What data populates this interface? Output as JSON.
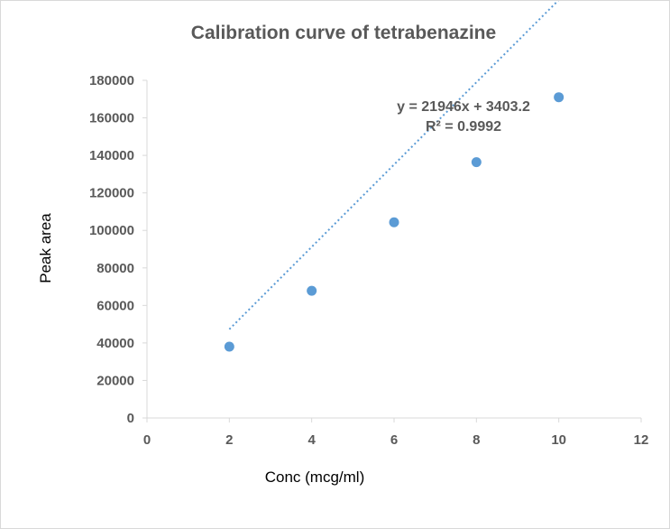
{
  "chart_data": {
    "type": "scatter",
    "title": "Calibration curve of tetrabenazine",
    "xlabel": "Conc (mcg/ml)",
    "ylabel": "Peak area",
    "xlim": [
      0,
      12
    ],
    "ylim": [
      0,
      180000
    ],
    "x_ticks": [
      "0",
      "2",
      "4",
      "6",
      "8",
      "10",
      "12"
    ],
    "y_ticks": [
      "0",
      "20000",
      "40000",
      "60000",
      "80000",
      "100000",
      "120000",
      "140000",
      "160000",
      "180000"
    ],
    "grid": false,
    "legend": "none",
    "series": [
      {
        "x": [
          2,
          4,
          6,
          8,
          10
        ],
        "y": [
          38000,
          67800,
          104300,
          136400,
          171000
        ]
      }
    ],
    "trendline": {
      "type": "linear",
      "slope": 21946,
      "intercept": 3403.2,
      "x_range": [
        2,
        10
      ],
      "style": "dotted"
    },
    "annotations": {
      "equation": "y = 21946x + 3403.2",
      "r_squared": "R² = 0.9992"
    },
    "colors": {
      "marker": "#5b9bd5",
      "trendline": "#5b9bd5",
      "axis": "#d9d9d9",
      "text": "#595959"
    }
  }
}
